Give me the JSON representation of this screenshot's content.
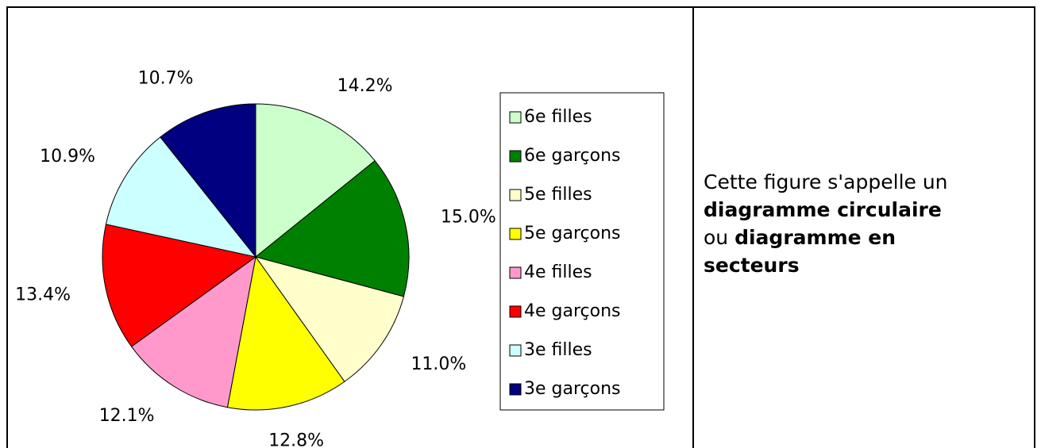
{
  "chart_data": {
    "type": "pie",
    "categories": [
      "6e filles",
      "6e garçons",
      "5e filles",
      "5e garçons",
      "4e filles",
      "4e garçons",
      "3e filles",
      "3e garçons"
    ],
    "values": [
      14.2,
      15.0,
      11.0,
      12.8,
      12.1,
      13.4,
      10.9,
      10.7
    ],
    "value_labels": [
      "14.2%",
      "15.0%",
      "11.0%",
      "12.8%",
      "12.1%",
      "13.4%",
      "10.9%",
      "10.7%"
    ],
    "colors": [
      "#ccffcc",
      "#008000",
      "#ffffcc",
      "#ffff00",
      "#ff99cc",
      "#ff0000",
      "#ccffff",
      "#000080"
    ],
    "legend": "right"
  },
  "caption": {
    "text_1": "Cette figure s'appelle un",
    "bold_1": "diagramme circulaire",
    "text_2": "ou",
    "bold_2": "diagramme en",
    "bold_3": "secteurs"
  }
}
